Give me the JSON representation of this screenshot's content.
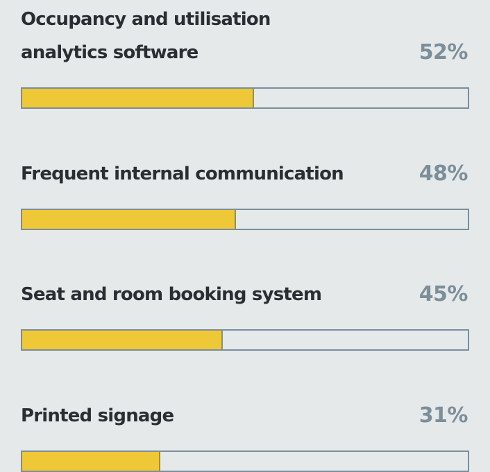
{
  "chart_data": {
    "type": "bar",
    "orientation": "horizontal",
    "categories": [
      "Occupancy and utilisation analytics software",
      "Frequent internal communication",
      "Seat and room booking system",
      "Printed signage"
    ],
    "values": [
      52,
      48,
      45,
      31
    ],
    "value_labels": [
      "52%",
      "48%",
      "45%",
      "31%"
    ],
    "color": "#efc838",
    "xlim": [
      0,
      100
    ]
  }
}
